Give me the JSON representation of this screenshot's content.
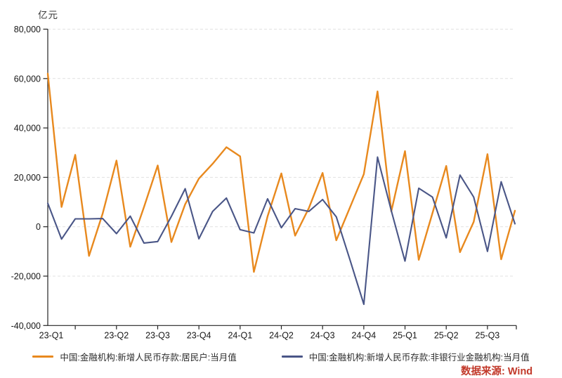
{
  "chart_data": {
    "type": "line",
    "unit_label": "亿元",
    "grid": "dashed-horizontal",
    "legend_position": "bottom",
    "ylim": [
      -40000,
      80000
    ],
    "y_ticks": [
      80000,
      60000,
      40000,
      20000,
      0,
      -20000,
      -40000
    ],
    "y_tick_labels": [
      "80,000",
      "60,000",
      "40,000",
      "20,000",
      "0",
      "-20,000",
      "-40,000"
    ],
    "x_tick_labels": [
      "23-Q1",
      "23-Q2",
      "23-Q3",
      "23-Q4",
      "24-Q1",
      "24-Q2",
      "24-Q3",
      "24-Q4",
      "25-Q1",
      "25-Q2",
      "25-Q3"
    ],
    "x": [
      "2023-01",
      "2023-02",
      "2023-03",
      "2023-04",
      "2023-05",
      "2023-06",
      "2023-07",
      "2023-08",
      "2023-09",
      "2023-10",
      "2023-11",
      "2023-12",
      "2024-01",
      "2024-02",
      "2024-03",
      "2024-04",
      "2024-05",
      "2024-06",
      "2024-07",
      "2024-08",
      "2024-09",
      "2024-10",
      "2024-11",
      "2024-12",
      "2025-01",
      "2025-02",
      "2025-03",
      "2025-04",
      "2025-05",
      "2025-06",
      "2025-07",
      "2025-08",
      "2025-09",
      "2025-10",
      "2025-11"
    ],
    "series": [
      {
        "name": "中国:金融机构:新增人民币存款:居民户:当月值",
        "color": "#e8891e",
        "values": [
          62000,
          8000,
          29100,
          -11800,
          5400,
          26800,
          -8100,
          7900,
          24800,
          -6200,
          9100,
          19500,
          25500,
          32200,
          28500,
          -18300,
          4200,
          21600,
          -3600,
          7500,
          21800,
          -5500,
          7900,
          21300,
          54800,
          6200,
          30600,
          -13400,
          5500,
          24600,
          -10300,
          2000,
          29400,
          -13200,
          6500
        ]
      },
      {
        "name": "中国:金融机构:新增人民币存款:非银行业金融机构:当月值",
        "color": "#4a5687",
        "values": [
          9500,
          -5000,
          3200,
          3200,
          3300,
          -2800,
          4300,
          -6600,
          -6000,
          4200,
          15400,
          -4900,
          6200,
          11600,
          -1200,
          -2500,
          11300,
          -400,
          7300,
          6200,
          11000,
          4000,
          -13500,
          -31400,
          28200,
          6500,
          -13900,
          15600,
          12000,
          -4500,
          20900,
          12000,
          -10000,
          18200,
          1200
        ]
      }
    ]
  },
  "watermark": {
    "text": "数据来源: Wind"
  }
}
